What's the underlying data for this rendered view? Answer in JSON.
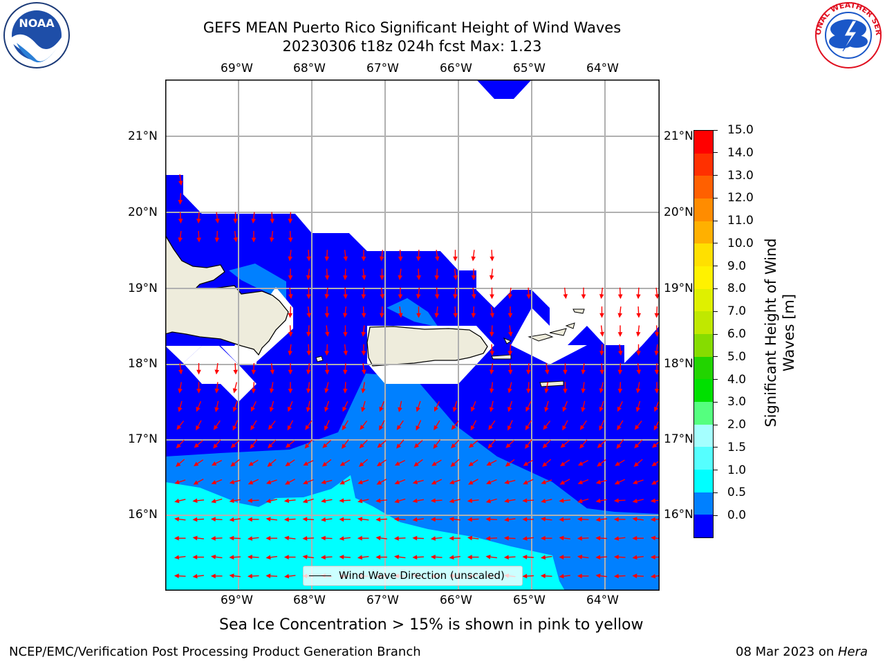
{
  "title": {
    "line1": "GEFS MEAN Puerto Rico Significant Height of Wind Waves",
    "line2": "20230306 t18z 024h fcst   Max: 1.23"
  },
  "map": {
    "lon_ticks": [
      "69°W",
      "68°W",
      "67°W",
      "66°W",
      "65°W",
      "64°W"
    ],
    "lat_ticks": [
      "21°N",
      "20°N",
      "19°N",
      "18°N",
      "17°N",
      "16°N"
    ],
    "legend_label": "Wind Wave Direction (unscaled)",
    "colors": {
      "land": "#eeecdc",
      "wave_0_05": "#0000fe",
      "wave_05_1": "#0080ff",
      "wave_1_15": "#00ffff",
      "arrow": "#ff0000",
      "grid": "#b0b0b0"
    }
  },
  "colorbar": {
    "label_line1": "Significant Height of Wind",
    "label_line2": "Waves [m]",
    "levels": [
      "15.0",
      "14.0",
      "13.0",
      "12.0",
      "11.0",
      "10.0",
      "9.0",
      "8.0",
      "7.0",
      "6.0",
      "5.0",
      "4.0",
      "3.0",
      "2.0",
      "1.5",
      "1.0",
      "0.5",
      "0.0"
    ],
    "colors": [
      "#ff0000",
      "#ff3000",
      "#ff6000",
      "#ff8c00",
      "#ffb000",
      "#ffe000",
      "#fff200",
      "#dff000",
      "#c0e800",
      "#86dc00",
      "#22d400",
      "#00e000",
      "#55ff7f",
      "#a5ffff",
      "#55ffff",
      "#00ffff",
      "#0080ff",
      "#0000ff"
    ]
  },
  "logos": {
    "left_name": "NOAA",
    "right_name": "NATIONAL WEATHER SERVICE"
  },
  "notes": {
    "sea_ice": "Sea Ice Concentration > 15% is shown in pink to yellow",
    "footer_left": "NCEP/EMC/Verification Post Processing Product Generation Branch",
    "footer_date": "08 Mar 2023 on ",
    "footer_host": "Hera"
  }
}
